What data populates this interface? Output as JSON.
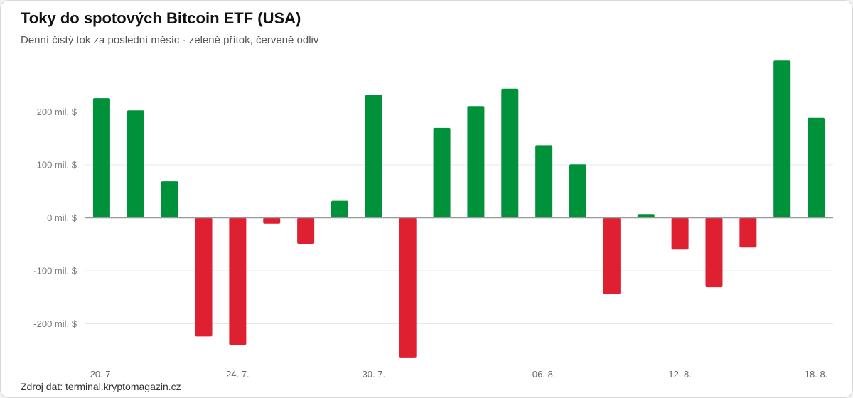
{
  "header": {
    "title": "Toky do spotových Bitcoin ETF (USA)",
    "subtitle": "Denní čistý tok za poslední měsíc · zeleně přítok, červeně odliv"
  },
  "footer": {
    "source": "Zdroj dat: terminal.kryptomagazin.cz"
  },
  "colors": {
    "inflow": "#00923a",
    "outflow": "#df2030",
    "grid": "#e8e8e8",
    "zero_line": "#999999"
  },
  "chart_data": {
    "type": "bar",
    "title": "Toky do spotových Bitcoin ETF (USA)",
    "subtitle": "Denní čistý tok za poslední měsíc · zeleně přítok, červeně odliv",
    "xlabel": "",
    "ylabel": "",
    "ylim": [
      -270,
      300
    ],
    "grid": true,
    "y_ticks": [
      {
        "value": 200,
        "label": "200 mil. $"
      },
      {
        "value": 100,
        "label": "100 mil. $"
      },
      {
        "value": 0,
        "label": "0 mil. $"
      },
      {
        "value": -100,
        "label": "-100 mil. $"
      },
      {
        "value": -200,
        "label": "-200 mil. $"
      }
    ],
    "x_ticks": [
      {
        "index": 0,
        "label": "20. 7."
      },
      {
        "index": 4,
        "label": "24. 7."
      },
      {
        "index": 8,
        "label": "30. 7."
      },
      {
        "index": 13,
        "label": "06. 8."
      },
      {
        "index": 17,
        "label": "12. 8."
      },
      {
        "index": 21,
        "label": "18. 8."
      }
    ],
    "values": [
      226,
      203,
      69,
      -224,
      -240,
      -11,
      -49,
      32,
      232,
      -265,
      170,
      211,
      244,
      137,
      101,
      -144,
      7,
      -60,
      -131,
      -56,
      297,
      189
    ]
  }
}
